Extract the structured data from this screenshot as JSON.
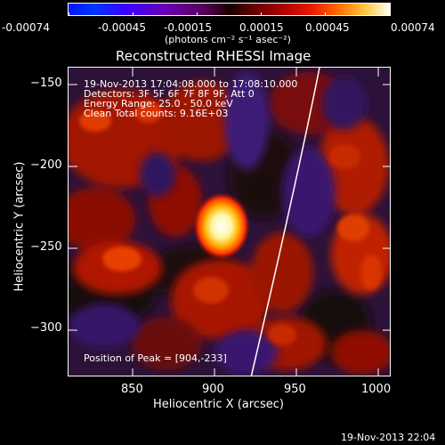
{
  "colorbar": {
    "tick_labels": [
      "-0.00074",
      "-0.00045",
      "-0.00015",
      "0.00015",
      "0.00045",
      "0.00074"
    ],
    "unit_label": "(photons cm⁻² s⁻¹ asec⁻²)",
    "gradient_colors": [
      "#0016ff",
      "#3d00ff",
      "#59005a",
      "#1a0000",
      "#b00000",
      "#ff6c00",
      "#fffff7"
    ]
  },
  "plot": {
    "title": "Reconstructed RHESSI Image",
    "info_lines": [
      "19-Nov-2013 17:04:08.000 to 17:08:10.000",
      "Detectors: 3F 5F 6F 7F 8F 9F, Att 0",
      "Energy Range: 25.0 - 50.0 keV",
      "Clean     Total counts: 9.16E+03"
    ],
    "peak_text": "Position of Peak = [904,-233]",
    "peak_position": {
      "x": 904,
      "y": -233
    }
  },
  "axes": {
    "xlabel": "Heliocentric X (arcsec)",
    "ylabel": "Heliocentric Y (arcsec)",
    "x_ticks": [
      850,
      900,
      950,
      1000
    ],
    "y_ticks": [
      -150,
      -200,
      -250,
      -300
    ],
    "x_tick_labels": [
      "850",
      "900",
      "950",
      "1000"
    ],
    "y_tick_labels": [
      "−150",
      "−200",
      "−250",
      "−300"
    ],
    "xlim": [
      811,
      1008
    ],
    "ylim": [
      -328,
      -139
    ]
  },
  "footer": {
    "timestamp": "19-Nov-2013 22:04"
  },
  "chart_data": {
    "type": "heatmap",
    "title": "Reconstructed RHESSI Image",
    "xlabel": "Heliocentric X (arcsec)",
    "ylabel": "Heliocentric Y (arcsec)",
    "xlim": [
      811,
      1008
    ],
    "ylim": [
      -328,
      -139
    ],
    "colorbar_range": [
      -0.00074,
      0.00074
    ],
    "peak": {
      "x": 904,
      "y": -233,
      "label": "Position of Peak = [904,-233]"
    },
    "limb": {
      "x_at_top": 959,
      "x_at_bottom": 910
    },
    "colors": {
      "negative": "#3a1466",
      "zero": "#1a0000",
      "positive": "#c01800",
      "peak": "#fffff0"
    }
  }
}
